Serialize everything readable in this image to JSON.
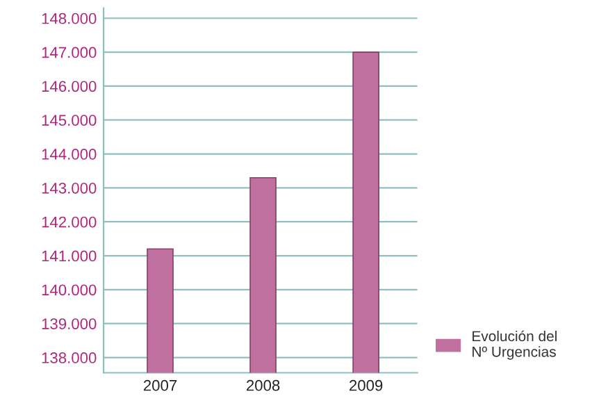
{
  "chart_data": {
    "type": "bar",
    "categories": [
      "2007",
      "2008",
      "2009"
    ],
    "series": [
      {
        "name": "Evolución del\nNº Urgencias",
        "color": "#c0709e",
        "values": [
          141200,
          143300,
          147000
        ]
      }
    ],
    "ylim": [
      137550,
      148300
    ],
    "yticks": [
      {
        "value": 138000,
        "label": "138.000"
      },
      {
        "value": 139000,
        "label": "139.000"
      },
      {
        "value": 140000,
        "label": "140.000"
      },
      {
        "value": 141000,
        "label": "141.000"
      },
      {
        "value": 142000,
        "label": "142.000"
      },
      {
        "value": 143000,
        "label": "143.000"
      },
      {
        "value": 144000,
        "label": "144.000"
      },
      {
        "value": 145000,
        "label": "145.000"
      },
      {
        "value": 146000,
        "label": "146.000"
      },
      {
        "value": 147000,
        "label": "147.000"
      },
      {
        "value": 148000,
        "label": "148.000"
      }
    ],
    "grid": "y",
    "legend": "bottom right"
  }
}
